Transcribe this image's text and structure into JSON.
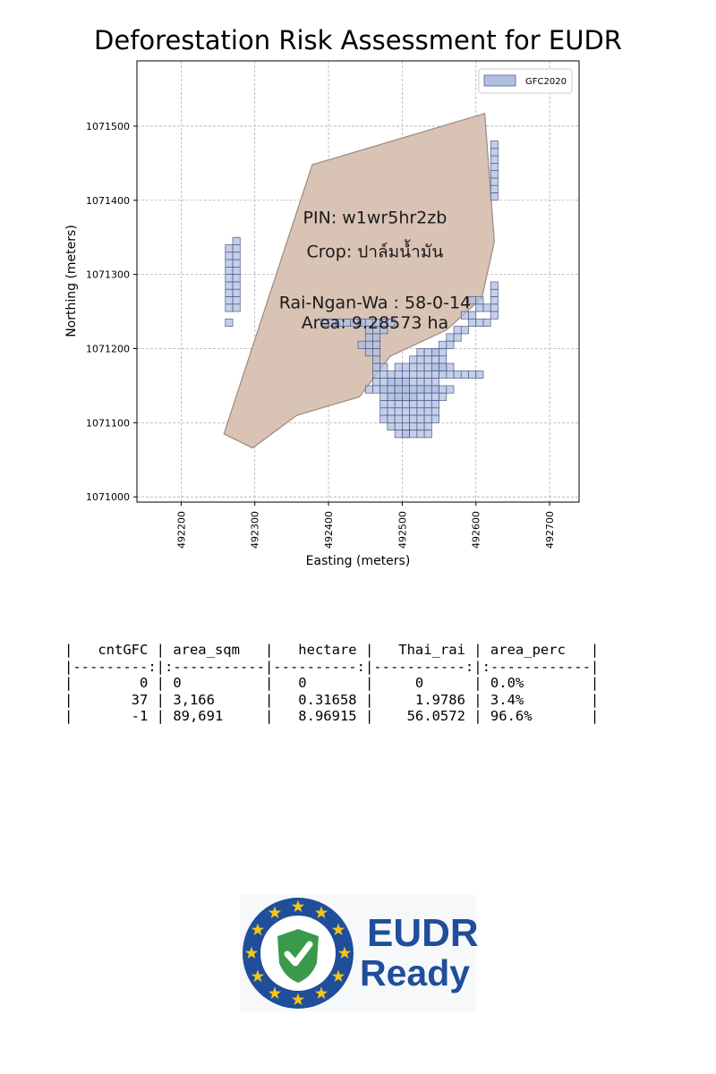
{
  "chart_data": {
    "type": "map",
    "title": "Deforestation Risk Assessment for EUDR",
    "xlabel": "Easting (meters)",
    "ylabel": "Northing (meters)",
    "xlim": [
      492140,
      492740
    ],
    "ylim": [
      1070993,
      1071588
    ],
    "xticks": [
      492200,
      492300,
      492400,
      492500,
      492600,
      492700
    ],
    "yticks": [
      1071000,
      1071100,
      1071200,
      1071300,
      1071400,
      1071500
    ],
    "grid": true,
    "legend": {
      "position": "top-right",
      "entries": [
        {
          "label": "GFC2020",
          "color": "#b0bfe0"
        }
      ]
    },
    "polygon": {
      "fill": "#d9c3b5",
      "edge": "#9a8a80",
      "points": [
        [
          492258,
          1071085
        ],
        [
          492297,
          1071066
        ],
        [
          492357,
          1071110
        ],
        [
          492442,
          1071135
        ],
        [
          492484,
          1071190
        ],
        [
          492560,
          1071225
        ],
        [
          492608,
          1071268
        ],
        [
          492625,
          1071344
        ],
        [
          492612,
          1071517
        ],
        [
          492378,
          1071448
        ]
      ]
    },
    "annotations": [
      {
        "text": "PIN: w1wr5hr2zb",
        "x": 492463,
        "y": 1071369
      },
      {
        "text": "Crop: ปาล์มน้ำมัน",
        "x": 492463,
        "y": 1071323
      },
      {
        "text": "Rai-Ngan-Wa : 58-0-14",
        "x": 492463,
        "y": 1071254
      },
      {
        "text": "Area: 9.28573 ha",
        "x": 492463,
        "y": 1071227
      }
    ],
    "pixel_size_m": 10,
    "gfc_pixel_runs": [
      [
        492260,
        1071230,
        492260
      ],
      [
        492260,
        1071250,
        492270
      ],
      [
        492260,
        1071260,
        492270
      ],
      [
        492260,
        1071270,
        492270
      ],
      [
        492260,
        1071280,
        492270
      ],
      [
        492260,
        1071290,
        492270
      ],
      [
        492260,
        1071300,
        492270
      ],
      [
        492260,
        1071310,
        492270
      ],
      [
        492260,
        1071320,
        492270
      ],
      [
        492260,
        1071330,
        492270
      ],
      [
        492270,
        1071340,
        492270
      ],
      [
        492620,
        1071400,
        492620
      ],
      [
        492620,
        1071410,
        492620
      ],
      [
        492620,
        1071420,
        492620
      ],
      [
        492620,
        1071430,
        492620
      ],
      [
        492620,
        1071440,
        492620
      ],
      [
        492620,
        1071450,
        492620
      ],
      [
        492620,
        1071460,
        492620
      ],
      [
        492620,
        1071470,
        492620
      ],
      [
        492620,
        1071240,
        492620
      ],
      [
        492620,
        1071250,
        492620
      ],
      [
        492620,
        1071260,
        492620
      ],
      [
        492620,
        1071270,
        492620
      ],
      [
        492620,
        1071280,
        492620
      ],
      [
        492390,
        1071230,
        492440
      ],
      [
        492590,
        1071230,
        492610
      ],
      [
        492600,
        1071250,
        492610
      ],
      [
        492590,
        1071260,
        492600
      ],
      [
        492580,
        1071240,
        492590
      ],
      [
        492570,
        1071220,
        492580
      ],
      [
        492560,
        1071210,
        492570
      ],
      [
        492550,
        1071200,
        492560
      ],
      [
        492540,
        1071190,
        492550
      ],
      [
        492450,
        1071230,
        492480
      ],
      [
        492450,
        1071220,
        492470
      ],
      [
        492450,
        1071210,
        492460
      ],
      [
        492440,
        1071200,
        492460
      ],
      [
        492450,
        1071190,
        492460
      ],
      [
        492460,
        1071180,
        492460
      ],
      [
        492460,
        1071170,
        492470
      ],
      [
        492460,
        1071160,
        492480
      ],
      [
        492460,
        1071150,
        492500
      ],
      [
        492450,
        1071140,
        492500
      ],
      [
        492480,
        1071130,
        492510
      ],
      [
        492490,
        1071170,
        492560
      ],
      [
        492510,
        1071180,
        492550
      ],
      [
        492520,
        1071190,
        492540
      ],
      [
        492490,
        1071160,
        492550
      ],
      [
        492480,
        1071150,
        492540
      ],
      [
        492470,
        1071140,
        492540
      ],
      [
        492490,
        1071140,
        492560
      ],
      [
        492470,
        1071130,
        492550
      ],
      [
        492470,
        1071120,
        492540
      ],
      [
        492470,
        1071110,
        492540
      ],
      [
        492470,
        1071100,
        492540
      ],
      [
        492480,
        1071090,
        492530
      ],
      [
        492490,
        1071080,
        492500
      ],
      [
        492500,
        1071080,
        492530
      ],
      [
        492560,
        1071160,
        492600
      ],
      [
        492540,
        1071170,
        492550
      ]
    ]
  },
  "table": {
    "lines": [
      "|   cntGFC | area_sqm   |   hectare |   Thai_rai | area_perc   |",
      "|---------:|:-----------|----------:|-----------:|:------------|",
      "|        0 | 0          |   0       |     0      | 0.0%        |",
      "|       37 | 3,166      |   0.31658 |     1.9786 | 3.4%        |",
      "|       -1 | 89,691     |   8.96915 |    56.0572 | 96.6%       |"
    ]
  },
  "logo": {
    "line1": "EUDR",
    "line2": "Ready",
    "ring_color": "#1f4e9a",
    "star_color": "#f5c518",
    "shield_color": "#3a9a4a"
  }
}
